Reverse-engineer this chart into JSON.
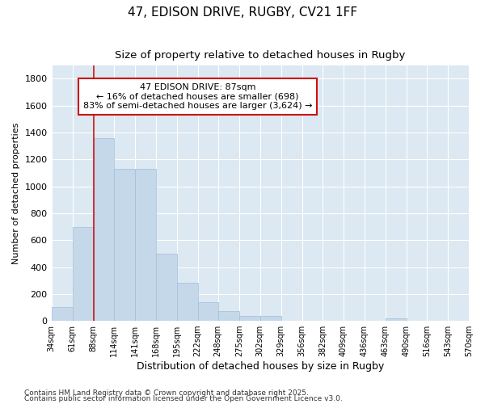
{
  "title1": "47, EDISON DRIVE, RUGBY, CV21 1FF",
  "title2": "Size of property relative to detached houses in Rugby",
  "xlabel": "Distribution of detached houses by size in Rugby",
  "ylabel": "Number of detached properties",
  "bar_edges": [
    34,
    61,
    88,
    114,
    141,
    168,
    195,
    222,
    248,
    275,
    302,
    329,
    356,
    382,
    409,
    436,
    463,
    490,
    516,
    543,
    570
  ],
  "bar_heights": [
    100,
    700,
    1360,
    1130,
    1130,
    500,
    280,
    140,
    70,
    35,
    35,
    0,
    0,
    0,
    0,
    0,
    20,
    0,
    0,
    0
  ],
  "bar_color": "#c5d8ea",
  "bar_edgecolor": "#a0bfd8",
  "vline_x": 88,
  "vline_color": "#cc1111",
  "ylim": [
    0,
    1900
  ],
  "yticks": [
    0,
    200,
    400,
    600,
    800,
    1000,
    1200,
    1400,
    1600,
    1800
  ],
  "plot_bg_color": "#dce8f2",
  "fig_bg_color": "#ffffff",
  "annotation_text": "47 EDISON DRIVE: 87sqm\n← 16% of detached houses are smaller (698)\n83% of semi-detached houses are larger (3,624) →",
  "footnote1": "Contains HM Land Registry data © Crown copyright and database right 2025.",
  "footnote2": "Contains public sector information licensed under the Open Government Licence v3.0."
}
